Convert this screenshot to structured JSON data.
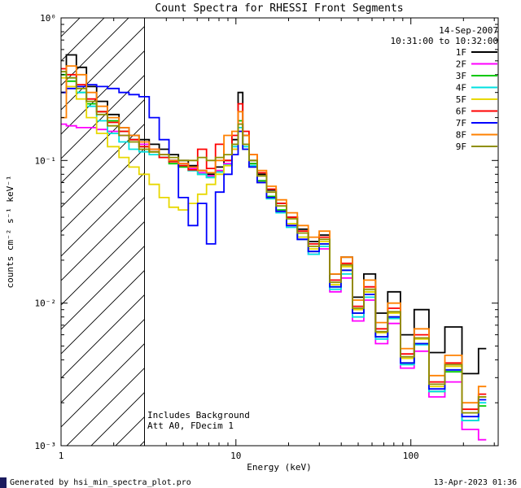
{
  "header": {
    "date": "14-Sep-2007",
    "time_range": "10:31:00 to 10:32:00"
  },
  "annotations": {
    "background": "Includes Background",
    "attenuator": "Att A0, FDecim 1"
  },
  "footer": {
    "left": "Generated by hsi_min_spectra_plot.pro",
    "right": "13-Apr-2023 01:36"
  },
  "colors": {
    "background": "#ffffff",
    "axis": "#000000",
    "timestamp_text": "#a03030"
  },
  "chart_data": {
    "type": "line",
    "mode": "stairstep",
    "xscale": "log",
    "yscale": "log",
    "title": "Count Spectra for RHESSI Front Segments",
    "xlabel": "Energy (keV)",
    "ylabel": "counts cm⁻² s⁻¹ keV⁻¹",
    "xlim": [
      1,
      316
    ],
    "ylim": [
      0.001,
      1
    ],
    "x_ticks": [
      {
        "v": 1,
        "label": "1"
      },
      {
        "v": 10,
        "label": "10"
      },
      {
        "v": 100,
        "label": "100"
      }
    ],
    "y_ticks": [
      {
        "v": 1,
        "label": "10⁰"
      },
      {
        "v": 0.1,
        "label": "10⁻¹"
      },
      {
        "v": 0.01,
        "label": "10⁻²"
      },
      {
        "v": 0.001,
        "label": "10⁻³"
      }
    ],
    "hatch_region": {
      "x_start": 1,
      "x_end": 3
    },
    "x": [
      1.0,
      1.15,
      1.3,
      1.5,
      1.7,
      2.0,
      2.3,
      2.6,
      3.0,
      3.4,
      3.9,
      4.4,
      5.0,
      5.7,
      6.4,
      7.2,
      8.1,
      9.0,
      10.0,
      10.6,
      11.3,
      12.5,
      14,
      16,
      18,
      21,
      24,
      28,
      32,
      37,
      43,
      50,
      58,
      68,
      80,
      95,
      115,
      140,
      175,
      220,
      270
    ],
    "series": [
      {
        "name": "1F",
        "color": "#000000",
        "values": [
          0.3,
          0.55,
          0.45,
          0.33,
          0.26,
          0.21,
          0.17,
          0.15,
          0.14,
          0.13,
          0.12,
          0.11,
          0.1,
          0.092,
          0.085,
          0.08,
          0.09,
          0.1,
          0.14,
          0.3,
          0.15,
          0.1,
          0.08,
          0.062,
          0.05,
          0.04,
          0.033,
          0.027,
          0.03,
          0.016,
          0.021,
          0.011,
          0.016,
          0.0085,
          0.012,
          0.006,
          0.009,
          0.0045,
          0.0068,
          0.0032,
          0.0048
        ]
      },
      {
        "name": "2F",
        "color": "#ff00ff",
        "values": [
          0.18,
          0.175,
          0.17,
          0.17,
          0.165,
          0.16,
          0.15,
          0.14,
          0.13,
          0.12,
          0.11,
          0.1,
          0.095,
          0.088,
          0.082,
          0.078,
          0.085,
          0.095,
          0.12,
          0.18,
          0.13,
          0.095,
          0.072,
          0.055,
          0.044,
          0.035,
          0.028,
          0.022,
          0.024,
          0.012,
          0.015,
          0.0075,
          0.0105,
          0.0052,
          0.0072,
          0.0035,
          0.0046,
          0.0022,
          0.0028,
          0.0013,
          0.0011
        ]
      },
      {
        "name": "3F",
        "color": "#00c800",
        "values": [
          0.4,
          0.36,
          0.3,
          0.25,
          0.22,
          0.19,
          0.16,
          0.14,
          0.125,
          0.115,
          0.105,
          0.095,
          0.09,
          0.085,
          0.08,
          0.076,
          0.083,
          0.093,
          0.13,
          0.19,
          0.13,
          0.095,
          0.072,
          0.056,
          0.045,
          0.036,
          0.029,
          0.023,
          0.026,
          0.013,
          0.017,
          0.0085,
          0.012,
          0.0058,
          0.008,
          0.0038,
          0.0052,
          0.0024,
          0.0033,
          0.0015,
          0.0019
        ]
      },
      {
        "name": "4F",
        "color": "#00e0e0",
        "values": [
          0.42,
          0.38,
          0.3,
          0.24,
          0.19,
          0.155,
          0.135,
          0.12,
          0.115,
          0.11,
          0.105,
          0.1,
          0.092,
          0.085,
          0.08,
          0.076,
          0.083,
          0.093,
          0.125,
          0.17,
          0.125,
          0.092,
          0.07,
          0.054,
          0.043,
          0.034,
          0.028,
          0.022,
          0.025,
          0.0125,
          0.016,
          0.008,
          0.011,
          0.0056,
          0.0078,
          0.0037,
          0.0051,
          0.0024,
          0.0034,
          0.0015,
          0.002
        ]
      },
      {
        "name": "5F",
        "color": "#e8d800",
        "values": [
          0.38,
          0.33,
          0.27,
          0.2,
          0.155,
          0.125,
          0.105,
          0.09,
          0.08,
          0.068,
          0.055,
          0.047,
          0.045,
          0.05,
          0.058,
          0.068,
          0.08,
          0.092,
          0.12,
          0.16,
          0.12,
          0.09,
          0.07,
          0.055,
          0.044,
          0.036,
          0.029,
          0.024,
          0.027,
          0.0135,
          0.018,
          0.009,
          0.012,
          0.0062,
          0.0085,
          0.0041,
          0.0056,
          0.0026,
          0.0036,
          0.0017,
          0.0022
        ]
      },
      {
        "name": "6F",
        "color": "#ff0000",
        "values": [
          0.44,
          0.4,
          0.34,
          0.27,
          0.22,
          0.185,
          0.16,
          0.14,
          0.125,
          0.115,
          0.105,
          0.098,
          0.092,
          0.086,
          0.12,
          0.088,
          0.13,
          0.1,
          0.15,
          0.25,
          0.16,
          0.11,
          0.082,
          0.063,
          0.05,
          0.04,
          0.032,
          0.026,
          0.029,
          0.0145,
          0.019,
          0.0095,
          0.013,
          0.0066,
          0.0092,
          0.0044,
          0.006,
          0.0028,
          0.0038,
          0.0018,
          0.0023
        ]
      },
      {
        "name": "7F",
        "color": "#0000ff",
        "values": [
          0.3,
          0.32,
          0.33,
          0.34,
          0.33,
          0.32,
          0.3,
          0.29,
          0.28,
          0.2,
          0.14,
          0.1,
          0.055,
          0.035,
          0.05,
          0.026,
          0.06,
          0.08,
          0.11,
          0.16,
          0.12,
          0.09,
          0.07,
          0.055,
          0.044,
          0.035,
          0.028,
          0.023,
          0.026,
          0.013,
          0.017,
          0.0085,
          0.0115,
          0.0058,
          0.008,
          0.0038,
          0.0052,
          0.0025,
          0.0034,
          0.0016,
          0.0021
        ]
      },
      {
        "name": "8F",
        "color": "#ff8000",
        "values": [
          0.2,
          0.46,
          0.4,
          0.3,
          0.24,
          0.2,
          0.17,
          0.15,
          0.135,
          0.12,
          0.11,
          0.1,
          0.095,
          0.09,
          0.085,
          0.082,
          0.1,
          0.15,
          0.16,
          0.22,
          0.15,
          0.11,
          0.085,
          0.066,
          0.053,
          0.043,
          0.035,
          0.029,
          0.032,
          0.016,
          0.021,
          0.0105,
          0.0145,
          0.0073,
          0.01,
          0.0048,
          0.0066,
          0.0031,
          0.0043,
          0.002,
          0.0026
        ]
      },
      {
        "name": "9F",
        "color": "#8f8f00",
        "values": [
          0.42,
          0.38,
          0.32,
          0.26,
          0.21,
          0.175,
          0.15,
          0.135,
          0.12,
          0.115,
          0.11,
          0.105,
          0.1,
          0.1,
          0.105,
          0.1,
          0.105,
          0.11,
          0.13,
          0.18,
          0.13,
          0.1,
          0.078,
          0.06,
          0.048,
          0.039,
          0.031,
          0.025,
          0.028,
          0.014,
          0.0185,
          0.0092,
          0.0125,
          0.0063,
          0.0087,
          0.0042,
          0.0057,
          0.0027,
          0.0037,
          0.0017,
          0.0022
        ]
      }
    ]
  }
}
